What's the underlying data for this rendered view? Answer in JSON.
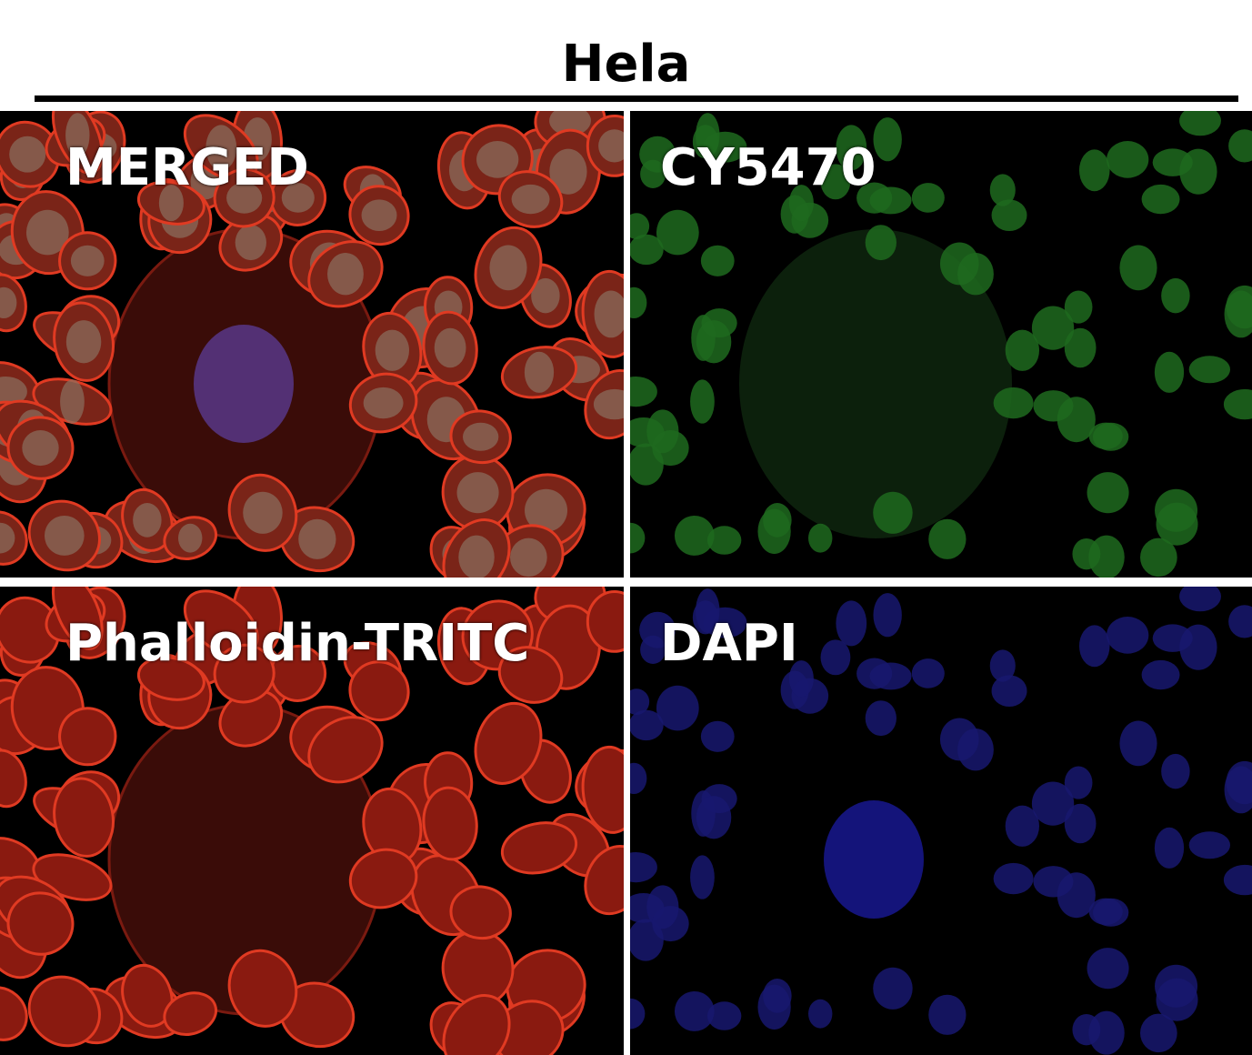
{
  "title": "Hela",
  "panels": [
    {
      "id": "merged",
      "label": "MERGED",
      "color": "#d03020"
    },
    {
      "id": "cy",
      "label": "CY5470",
      "color": "#2a8a2a"
    },
    {
      "id": "phal",
      "label": "Phalloidin-TRITC",
      "color": "#d02818"
    },
    {
      "id": "dapi",
      "label": "DAPI",
      "color": "#2020a0"
    }
  ]
}
